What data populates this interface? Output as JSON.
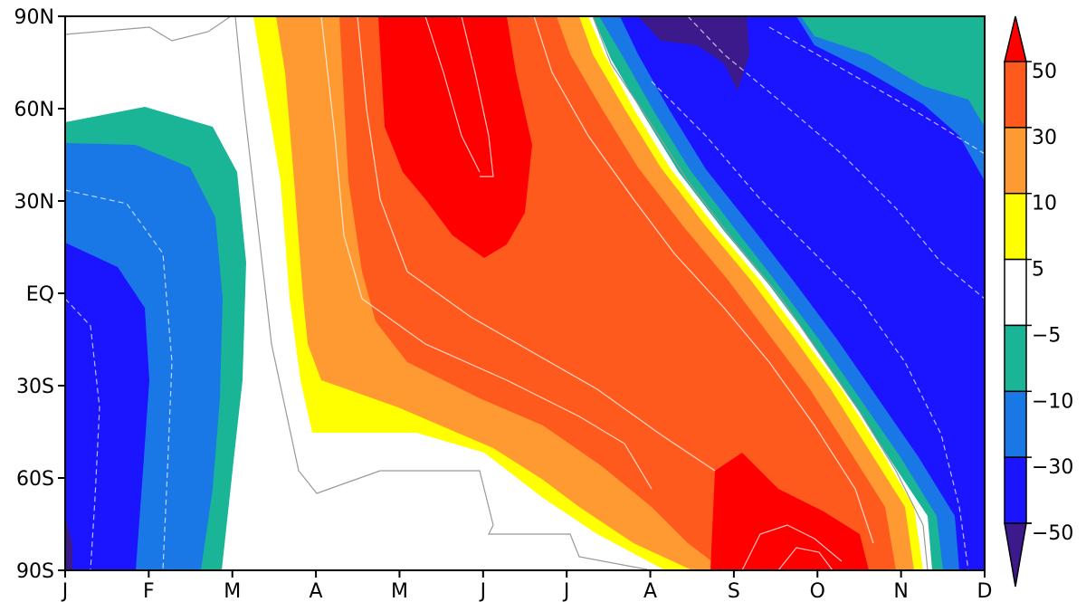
{
  "chart_data": {
    "type": "heatmap",
    "subtype": "filled-contour (latitude vs. month)",
    "title": "",
    "xlabel": "",
    "ylabel": "",
    "x_ticks": [
      "J",
      "F",
      "M",
      "A",
      "M",
      "J",
      "J",
      "A",
      "S",
      "O",
      "N",
      "D"
    ],
    "y_ticks": [
      "90N",
      "60N",
      "30N",
      "EQ",
      "30S",
      "60S",
      "90S"
    ],
    "x_range": [
      "Jan",
      "Dec"
    ],
    "y_range": [
      "90S",
      "90N"
    ],
    "levels": [
      -50,
      -30,
      -10,
      -5,
      5,
      10,
      30,
      50
    ],
    "colorbar_labels": [
      "50",
      "30",
      "10",
      "5",
      "−5",
      "−10",
      "−30",
      "−50"
    ],
    "colorbar_position": "right",
    "colors": {
      "below_-50": "#3c1a8c",
      "-50_to_-30": "#1a14ff",
      "-30_to_-10": "#1a78e6",
      "-10_to_-5": "#1ab496",
      "-5_to_5": "#ffffff",
      "5_to_10": "#ffff00",
      "10_to_30": "#ff9a32",
      "30_to_50": "#ff5a1e",
      "above_50": "#ff0000"
    },
    "features": [
      {
        "region": "Jan-Mar, 60N-90S",
        "sign": "negative",
        "min_level": -50
      },
      {
        "region": "Apr-Aug, diagonal band from 90N (May-Jun) to 90S (Sep-Oct)",
        "sign": "positive",
        "max_level": 50
      },
      {
        "region": "May-Jun, 90N-20N",
        "sign": "positive",
        "value": "> 50"
      },
      {
        "region": "Sep-Oct, 60S-90S",
        "sign": "positive",
        "value": "> 50"
      },
      {
        "region": "Jul-Dec, northeast of diagonal",
        "sign": "negative",
        "min_level": -50
      },
      {
        "region": "Aug-Sep, 90N-70N",
        "sign": "negative",
        "value": "< -50"
      }
    ],
    "grid": false
  }
}
